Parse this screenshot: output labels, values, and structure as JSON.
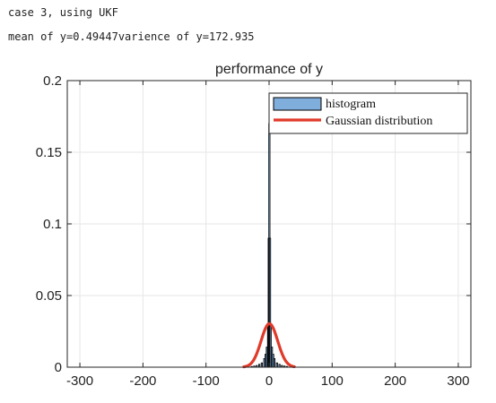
{
  "console": {
    "line1": "case 3, using UKF",
    "line2": "mean of y=0.49447varience of y=172.935"
  },
  "chart_data": {
    "type": "bar",
    "title": "performance of y",
    "xlabel": "",
    "ylabel": "",
    "xlim": [
      -320,
      320
    ],
    "ylim": [
      0,
      0.2
    ],
    "xticks": [
      -300,
      -200,
      -100,
      0,
      100,
      200,
      300
    ],
    "yticks": [
      0,
      0.05,
      0.1,
      0.15,
      0.2
    ],
    "ytick_labels": [
      "0",
      "0.05",
      "0.1",
      "0.15",
      "0.2"
    ],
    "grid": true,
    "legend_position": "top-right",
    "series": [
      {
        "name": "histogram",
        "kind": "histogram",
        "color": "#7faedc",
        "edge_color": "#000000",
        "bins": [
          [
            -28,
            0.0005
          ],
          [
            -24,
            0.0008
          ],
          [
            -20,
            0.0012
          ],
          [
            -16,
            0.002
          ],
          [
            -12,
            0.003
          ],
          [
            -8,
            0.006
          ],
          [
            -6,
            0.009
          ],
          [
            -4,
            0.014
          ],
          [
            -2,
            0.03
          ],
          [
            -1,
            0.09
          ],
          [
            0,
            0.17
          ],
          [
            1,
            0.09
          ],
          [
            2,
            0.03
          ],
          [
            4,
            0.014
          ],
          [
            6,
            0.009
          ],
          [
            8,
            0.006
          ],
          [
            12,
            0.003
          ],
          [
            16,
            0.002
          ],
          [
            20,
            0.0012
          ],
          [
            24,
            0.0008
          ],
          [
            28,
            0.0005
          ]
        ]
      },
      {
        "name": "Gaussian distribution",
        "kind": "line",
        "color": "#e03a2a",
        "mean": 0.49447,
        "variance": 172.935,
        "x_range": [
          -40,
          40
        ]
      }
    ]
  }
}
